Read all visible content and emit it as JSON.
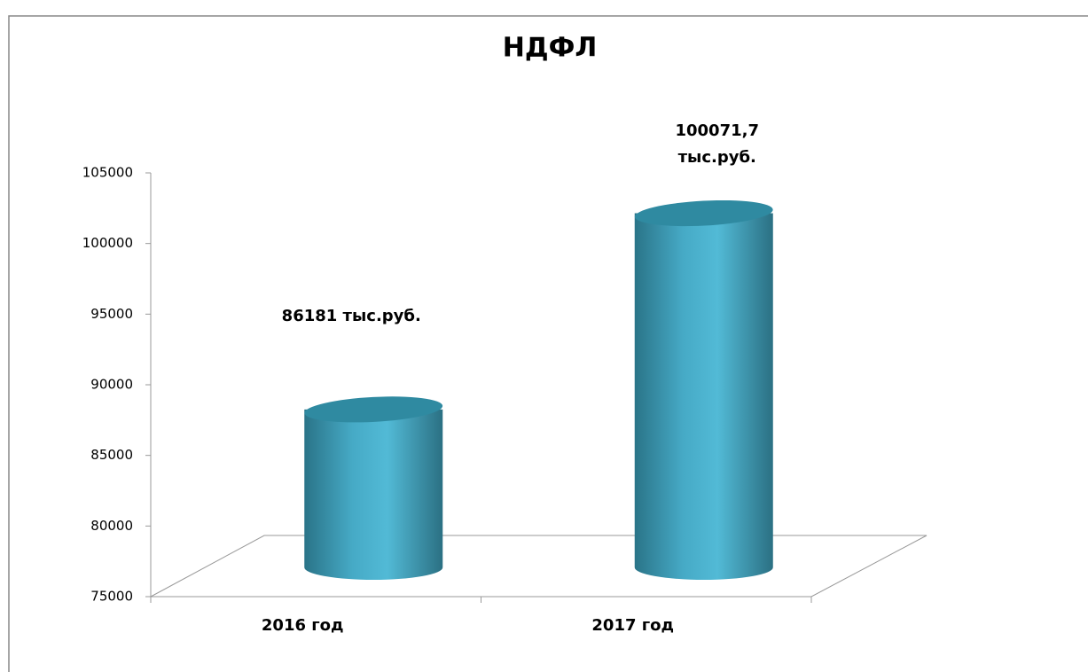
{
  "chart_data": {
    "type": "bar",
    "title": "НДФЛ",
    "categories": [
      "2016 год",
      "2017 год"
    ],
    "values": [
      86181,
      100071.7
    ],
    "value_labels": [
      "86181 тыс.руб.",
      "100071,7 тыс.руб."
    ],
    "color": "#4bb3cf",
    "ylim": [
      75000,
      105000
    ],
    "yticks": [
      75000,
      80000,
      85000,
      90000,
      95000,
      100000,
      105000
    ]
  }
}
